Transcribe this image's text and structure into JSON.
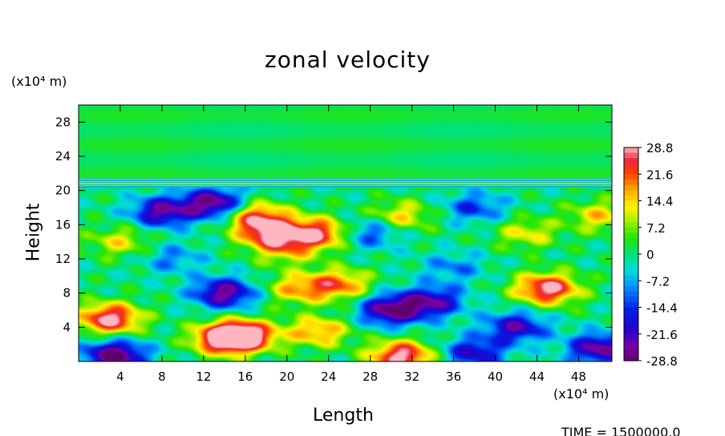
{
  "chart_data": {
    "type": "heatmap",
    "title": "zonal velocity",
    "xlabel": "Length",
    "ylabel": "Height",
    "x_unit": "(x10⁴ m)",
    "y_unit": "(x10⁴ m)",
    "xlim": [
      0,
      51.2
    ],
    "ylim": [
      0,
      30
    ],
    "xticks": [
      4,
      8,
      12,
      16,
      20,
      24,
      28,
      32,
      36,
      40,
      44,
      48
    ],
    "yticks": [
      4,
      8,
      12,
      16,
      20,
      24,
      28
    ],
    "colorbar": {
      "ticks": [
        28.8,
        21.6,
        14.4,
        7.2,
        0,
        -7.2,
        -14.4,
        -21.6,
        -28.8
      ],
      "range": [
        -28.8,
        28.8
      ]
    },
    "annotation": "TIME = 1500000.0",
    "field_features": [
      {
        "x": 3,
        "y": 5,
        "value": 30
      },
      {
        "x": 3.5,
        "y": 0.7,
        "value": -30
      },
      {
        "x": 14,
        "y": 2.7,
        "value": 30
      },
      {
        "x": 16,
        "y": 3,
        "value": 28
      },
      {
        "x": 31,
        "y": 0.6,
        "value": 30
      },
      {
        "x": 45,
        "y": 8.5,
        "value": 30
      },
      {
        "x": 38,
        "y": 1,
        "value": -20
      },
      {
        "x": 13,
        "y": 18.5,
        "value": -28
      },
      {
        "x": 8,
        "y": 17.5,
        "value": -24
      },
      {
        "x": 14,
        "y": 8,
        "value": -26
      },
      {
        "x": 30,
        "y": 6,
        "value": -28
      },
      {
        "x": 34,
        "y": 7,
        "value": -22
      },
      {
        "x": 42,
        "y": 4,
        "value": -22
      },
      {
        "x": 50,
        "y": 1.5,
        "value": -26
      },
      {
        "x": 21,
        "y": 8.5,
        "value": 16
      },
      {
        "x": 25,
        "y": 9,
        "value": 20
      },
      {
        "x": 23,
        "y": 3.5,
        "value": 18
      },
      {
        "x": 18.5,
        "y": 15,
        "value": 26
      },
      {
        "x": 23,
        "y": 15,
        "value": 26
      },
      {
        "x": 17,
        "y": 17,
        "value": 22
      },
      {
        "x": 31,
        "y": 17,
        "value": 14
      },
      {
        "x": 38,
        "y": 18,
        "value": -14
      },
      {
        "x": 28,
        "y": 15,
        "value": -14
      },
      {
        "x": 4,
        "y": 14,
        "value": 12
      },
      {
        "x": 43,
        "y": 15,
        "value": 12
      },
      {
        "x": 50,
        "y": 17,
        "value": 14
      },
      {
        "x": 20,
        "y": 13,
        "value": 12
      },
      {
        "x": 9,
        "y": 12,
        "value": -10
      },
      {
        "x": 36,
        "y": 11,
        "value": -10
      }
    ]
  }
}
